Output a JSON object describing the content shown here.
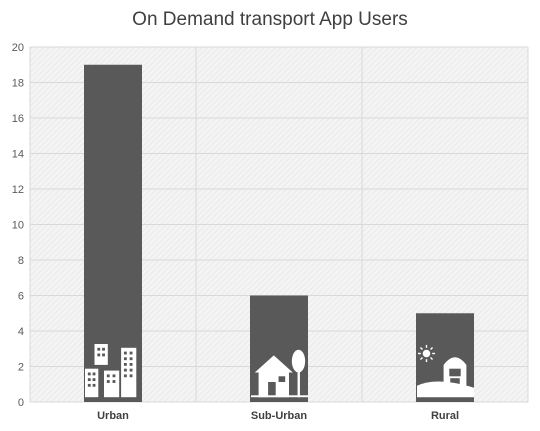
{
  "chart_data": {
    "type": "bar",
    "title": "On Demand transport App Users",
    "categories": [
      "Urban",
      "Sub-Urban",
      "Rural"
    ],
    "values": [
      19,
      6,
      5
    ],
    "icons": [
      "city-buildings-icon",
      "suburban-house-icon",
      "rural-barn-icon"
    ],
    "ylim": [
      0,
      20
    ],
    "yticks": [
      0,
      2,
      4,
      6,
      8,
      10,
      12,
      14,
      16,
      18,
      20
    ],
    "grid": true,
    "legend": "none",
    "colors": {
      "bar": "#595959",
      "grid": "#d9d9d9",
      "plot_bg": "#f2f2f2",
      "icon": "#ffffff"
    }
  }
}
